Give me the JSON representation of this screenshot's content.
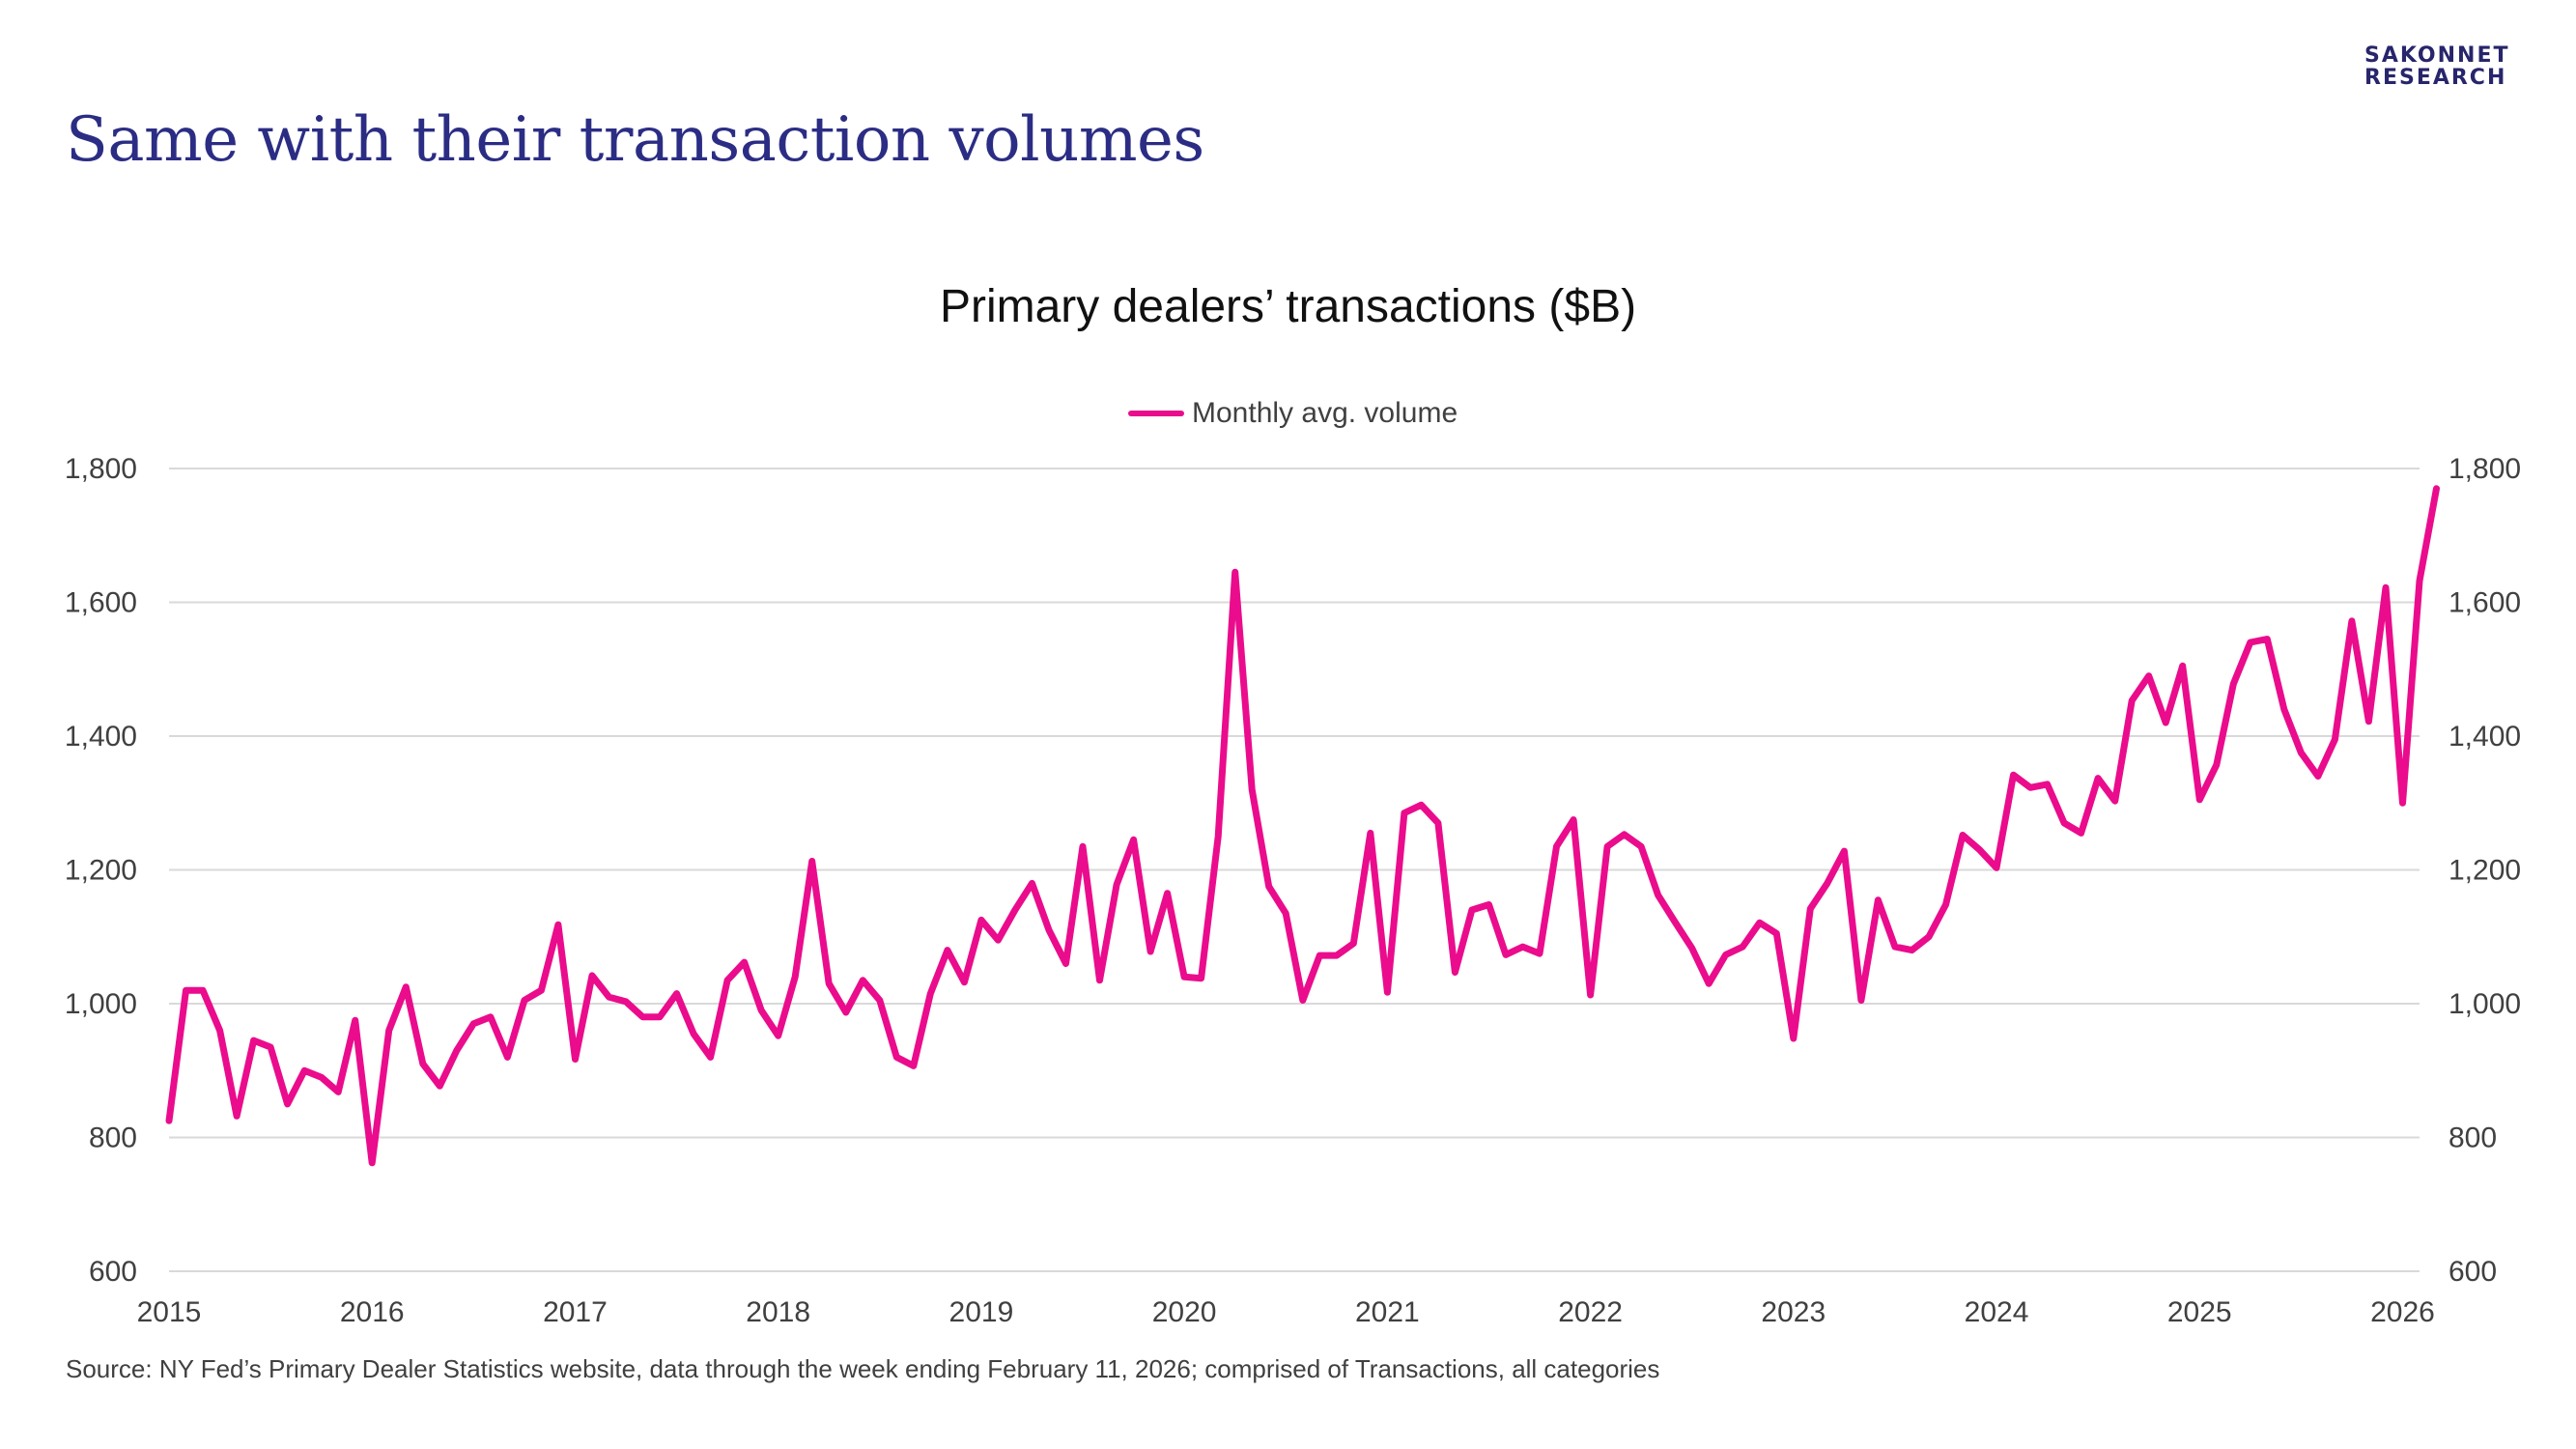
{
  "brand": {
    "line1": "SAKONNET",
    "line2": "RESEARCH"
  },
  "page_title": "Same with their transaction volumes",
  "source": "Source: NY Fed’s Primary Dealer Statistics website, data through the week ending February 11, 2026; comprised of Transactions, all categories",
  "colors": {
    "series": "#ea0c8c",
    "title": "#2b2d84",
    "grid": "#d9d9d9",
    "text": "#404040"
  },
  "chart_data": {
    "type": "line",
    "title": "Primary dealers’ transactions ($B)",
    "xlabel": "",
    "ylabel": "",
    "ylim": [
      600,
      1800
    ],
    "yticks": [
      600,
      800,
      1000,
      1200,
      1400,
      1600,
      1800
    ],
    "ytick_labels": [
      "600",
      "800",
      "1,000",
      "1,200",
      "1,400",
      "1,600",
      "1,800"
    ],
    "secondary_y_axis": true,
    "xticks": [
      "2015",
      "2016",
      "2017",
      "2018",
      "2019",
      "2020",
      "2021",
      "2022",
      "2023",
      "2024",
      "2025",
      "2026"
    ],
    "grid": true,
    "legend_position": "top-center",
    "x_start": "2015-01",
    "frequency": "monthly",
    "series": [
      {
        "name": "Monthly avg. volume",
        "values": [
          825,
          1020,
          1020,
          960,
          832,
          945,
          935,
          850,
          900,
          890,
          868,
          975,
          762,
          960,
          1025,
          910,
          877,
          930,
          970,
          980,
          920,
          1005,
          1020,
          1118,
          917,
          1042,
          1010,
          1003,
          980,
          980,
          1015,
          955,
          920,
          1035,
          1062,
          990,
          952,
          1040,
          1213,
          1030,
          987,
          1035,
          1005,
          920,
          907,
          1015,
          1080,
          1032,
          1125,
          1095,
          1140,
          1180,
          1110,
          1060,
          1235,
          1035,
          1178,
          1245,
          1078,
          1165,
          1040,
          1038,
          1250,
          1645,
          1320,
          1175,
          1135,
          1005,
          1072,
          1072,
          1090,
          1255,
          1017,
          1285,
          1297,
          1270,
          1047,
          1140,
          1148,
          1073,
          1085,
          1075,
          1235,
          1275,
          1013,
          1235,
          1253,
          1235,
          1162,
          1122,
          1083,
          1030,
          1073,
          1085,
          1121,
          1105,
          948,
          1142,
          1180,
          1228,
          1005,
          1155,
          1085,
          1080,
          1100,
          1148,
          1252,
          1230,
          1203,
          1342,
          1323,
          1328,
          1270,
          1255,
          1337,
          1303,
          1453,
          1490,
          1420,
          1505,
          1305,
          1357,
          1478,
          1540,
          1545,
          1440,
          1375,
          1340,
          1395,
          1572,
          1422,
          1622,
          1300,
          1632,
          1770
        ]
      }
    ]
  }
}
